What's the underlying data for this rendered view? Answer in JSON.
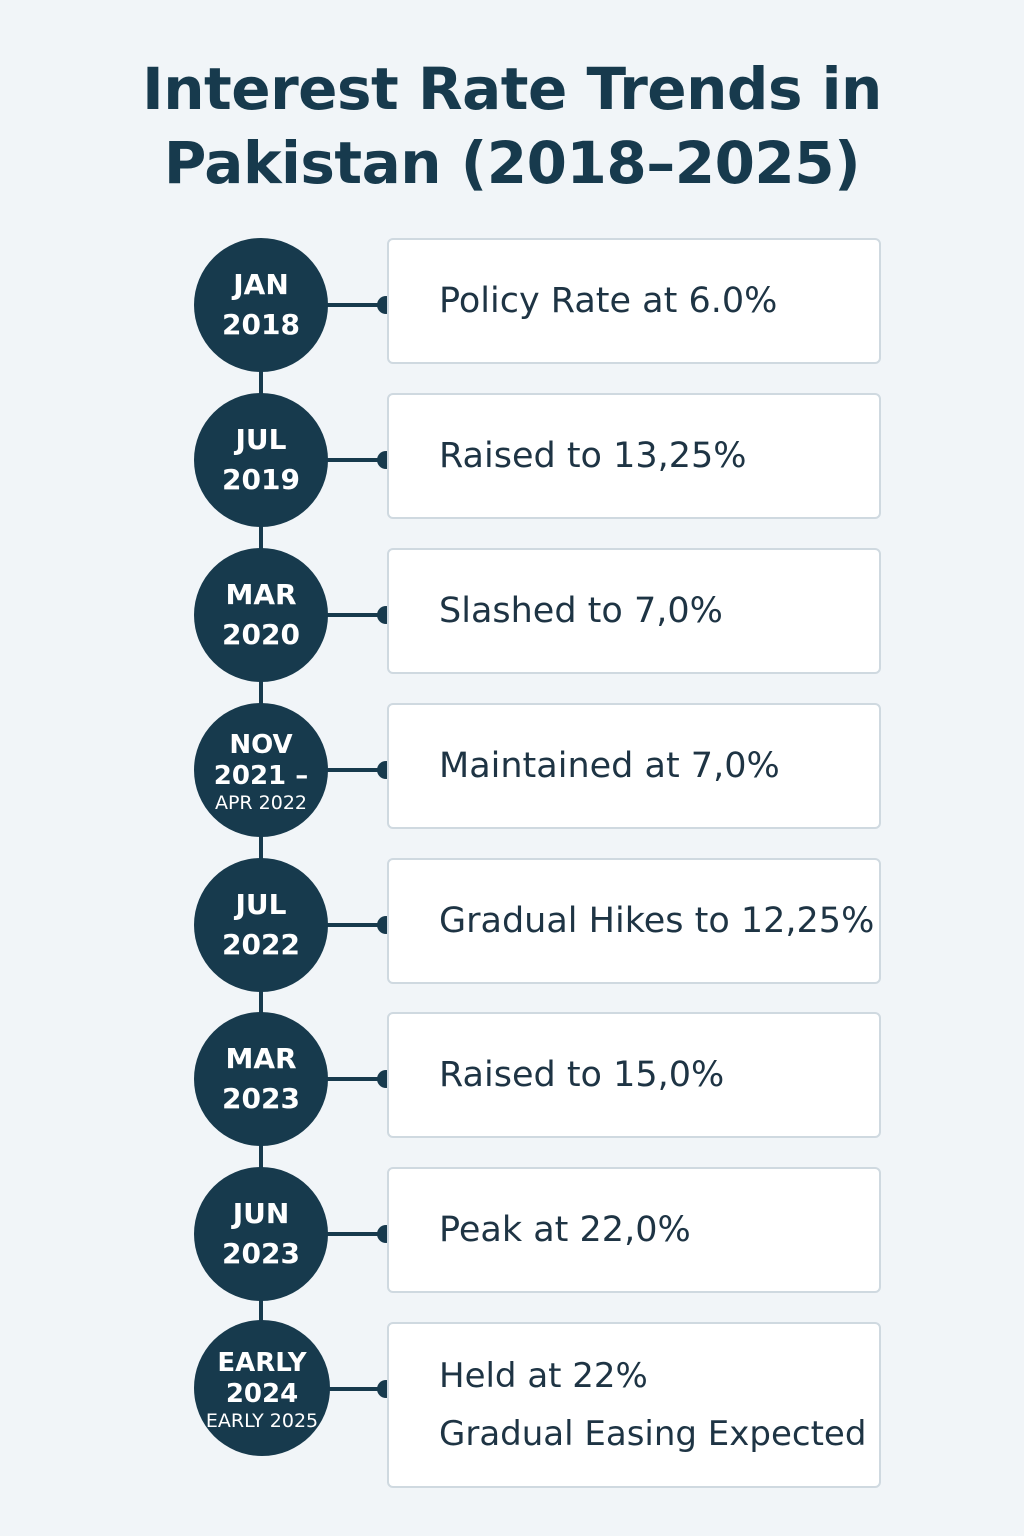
{
  "title": {
    "line1": "Interest Rate Trends in",
    "line2": "Pakistan (2018–2025)"
  },
  "timeline": [
    {
      "date_line1": "JAN",
      "date_line2": "2018",
      "text": "Policy Rate at 6.0%"
    },
    {
      "date_line1": "JUL",
      "date_line2": "2019",
      "text": "Raised to 13,25%"
    },
    {
      "date_line1": "MAR",
      "date_line2": "2020",
      "text": "Slashed to 7,0%"
    },
    {
      "date_line1": "NOV",
      "date_line2": "2021 –",
      "date_line3": "APR 2022",
      "text": "Maintained at 7,0%"
    },
    {
      "date_line1": "JUL",
      "date_line2": "2022",
      "text": "Gradual Hikes to 12,25%"
    },
    {
      "date_line1": "MAR",
      "date_line2": "2023",
      "text": "Raised to 15,0%"
    },
    {
      "date_line1": "JUN",
      "date_line2": "2023",
      "text": "Peak at 22,0%"
    },
    {
      "date_line1": "EARLY",
      "date_line2": "2024",
      "date_line3": "EARLY 2025",
      "text": "Held at 22%",
      "text_line2": "Gradual Easing Expected"
    }
  ]
}
